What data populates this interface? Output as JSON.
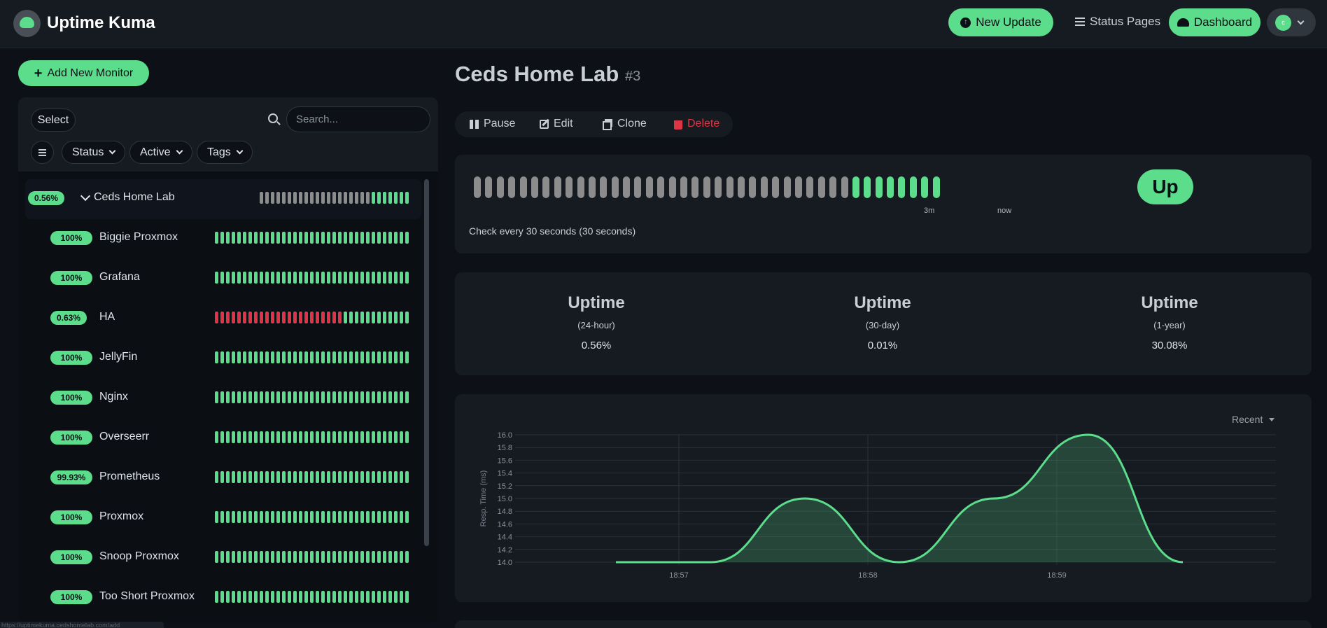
{
  "header": {
    "brand": "Uptime Kuma",
    "new_update_label": "New Update",
    "status_pages_label": "Status Pages",
    "dashboard_label": "Dashboard",
    "avatar_initial": "c"
  },
  "sidebar": {
    "add_monitor_label": "Add New Monitor",
    "select_label": "Select",
    "search_placeholder": "Search...",
    "filters": {
      "status": "Status",
      "active": "Active",
      "tags": "Tags"
    },
    "monitors": [
      {
        "name": "Ceds Home Lab",
        "uptime": "0.56%",
        "group": true,
        "beats": [
          "g",
          "g",
          "g",
          "g",
          "g",
          "g",
          "g",
          "g",
          "g",
          "g",
          "g",
          "g",
          "g",
          "g",
          "g",
          "g",
          "g",
          "g",
          "g",
          "g",
          "u",
          "u",
          "u",
          "u",
          "u",
          "u",
          "u"
        ]
      },
      {
        "name": "Biggie Proxmox",
        "uptime": "100%",
        "beats": [
          "u",
          "u",
          "u",
          "u",
          "u",
          "u",
          "u",
          "u",
          "u",
          "u",
          "u",
          "u",
          "u",
          "u",
          "u",
          "u",
          "u",
          "u",
          "u",
          "u",
          "u",
          "u",
          "u",
          "u",
          "u",
          "u",
          "u",
          "u",
          "u",
          "u",
          "u",
          "u",
          "u",
          "u",
          "u"
        ]
      },
      {
        "name": "Grafana",
        "uptime": "100%",
        "beats": [
          "u",
          "u",
          "u",
          "u",
          "u",
          "u",
          "u",
          "u",
          "u",
          "u",
          "u",
          "u",
          "u",
          "u",
          "u",
          "u",
          "u",
          "u",
          "u",
          "u",
          "u",
          "u",
          "u",
          "u",
          "u",
          "u",
          "u",
          "u",
          "u",
          "u",
          "u",
          "u",
          "u",
          "u",
          "u"
        ]
      },
      {
        "name": "HA",
        "uptime": "0.63%",
        "beats": [
          "d",
          "d",
          "d",
          "d",
          "d",
          "d",
          "d",
          "d",
          "d",
          "d",
          "d",
          "d",
          "d",
          "d",
          "d",
          "d",
          "d",
          "d",
          "d",
          "d",
          "d",
          "d",
          "d",
          "u",
          "u",
          "u",
          "u",
          "u",
          "u",
          "u",
          "u",
          "u",
          "u",
          "u",
          "u"
        ]
      },
      {
        "name": "JellyFin",
        "uptime": "100%",
        "beats": [
          "u",
          "u",
          "u",
          "u",
          "u",
          "u",
          "u",
          "u",
          "u",
          "u",
          "u",
          "u",
          "u",
          "u",
          "u",
          "u",
          "u",
          "u",
          "u",
          "u",
          "u",
          "u",
          "u",
          "u",
          "u",
          "u",
          "u",
          "u",
          "u",
          "u",
          "u",
          "u",
          "u",
          "u",
          "u"
        ]
      },
      {
        "name": "Nginx",
        "uptime": "100%",
        "beats": [
          "u",
          "u",
          "u",
          "u",
          "u",
          "u",
          "u",
          "u",
          "u",
          "u",
          "u",
          "u",
          "u",
          "u",
          "u",
          "u",
          "u",
          "u",
          "u",
          "u",
          "u",
          "u",
          "u",
          "u",
          "u",
          "u",
          "u",
          "u",
          "u",
          "u",
          "u",
          "u",
          "u",
          "u",
          "u"
        ]
      },
      {
        "name": "Overseerr",
        "uptime": "100%",
        "beats": [
          "u",
          "u",
          "u",
          "u",
          "u",
          "u",
          "u",
          "u",
          "u",
          "u",
          "u",
          "u",
          "u",
          "u",
          "u",
          "u",
          "u",
          "u",
          "u",
          "u",
          "u",
          "u",
          "u",
          "u",
          "u",
          "u",
          "u",
          "u",
          "u",
          "u",
          "u",
          "u",
          "u",
          "u",
          "u"
        ]
      },
      {
        "name": "Prometheus",
        "uptime": "99.93%",
        "beats": [
          "u",
          "u",
          "u",
          "u",
          "u",
          "u",
          "u",
          "u",
          "u",
          "u",
          "u",
          "u",
          "u",
          "u",
          "u",
          "u",
          "u",
          "u",
          "u",
          "u",
          "u",
          "u",
          "u",
          "u",
          "u",
          "u",
          "u",
          "u",
          "u",
          "u",
          "u",
          "u",
          "u",
          "u",
          "u"
        ]
      },
      {
        "name": "Proxmox",
        "uptime": "100%",
        "beats": [
          "u",
          "u",
          "u",
          "u",
          "u",
          "u",
          "u",
          "u",
          "u",
          "u",
          "u",
          "u",
          "u",
          "u",
          "u",
          "u",
          "u",
          "u",
          "u",
          "u",
          "u",
          "u",
          "u",
          "u",
          "u",
          "u",
          "u",
          "u",
          "u",
          "u",
          "u",
          "u",
          "u",
          "u",
          "u"
        ]
      },
      {
        "name": "Snoop Proxmox",
        "uptime": "100%",
        "beats": [
          "u",
          "u",
          "u",
          "u",
          "u",
          "u",
          "u",
          "u",
          "u",
          "u",
          "u",
          "u",
          "u",
          "u",
          "u",
          "u",
          "u",
          "u",
          "u",
          "u",
          "u",
          "u",
          "u",
          "u",
          "u",
          "u",
          "u",
          "u",
          "u",
          "u",
          "u",
          "u",
          "u",
          "u",
          "u"
        ]
      },
      {
        "name": "Too Short Proxmox",
        "uptime": "100%",
        "beats": [
          "u",
          "u",
          "u",
          "u",
          "u",
          "u",
          "u",
          "u",
          "u",
          "u",
          "u",
          "u",
          "u",
          "u",
          "u",
          "u",
          "u",
          "u",
          "u",
          "u",
          "u",
          "u",
          "u",
          "u",
          "u",
          "u",
          "u",
          "u",
          "u",
          "u",
          "u",
          "u",
          "u",
          "u",
          "u"
        ]
      }
    ]
  },
  "detail": {
    "title": "Ceds Home Lab",
    "id": "#3",
    "actions": {
      "pause": "Pause",
      "edit": "Edit",
      "clone": "Clone",
      "delete": "Delete"
    },
    "heartbeat": {
      "beats": [
        "g",
        "g",
        "g",
        "g",
        "g",
        "g",
        "g",
        "g",
        "g",
        "g",
        "g",
        "g",
        "g",
        "g",
        "g",
        "g",
        "g",
        "g",
        "g",
        "g",
        "g",
        "g",
        "g",
        "g",
        "g",
        "g",
        "g",
        "g",
        "g",
        "g",
        "g",
        "g",
        "g",
        "u",
        "u",
        "u",
        "u",
        "u",
        "u",
        "u",
        "u"
      ],
      "label_3m": "3m",
      "label_now": "now",
      "check_text": "Check every 30 seconds (30 seconds)",
      "status": "Up"
    },
    "uptime_stats": [
      {
        "heading": "Uptime",
        "period": "(24-hour)",
        "value": "0.56%"
      },
      {
        "heading": "Uptime",
        "period": "(30-day)",
        "value": "0.01%"
      },
      {
        "heading": "Uptime",
        "period": "(1-year)",
        "value": "30.08%"
      }
    ],
    "range_label": "Recent"
  },
  "colors": {
    "accent": "#5cdd8b",
    "down": "#dc3545",
    "pending": "#8c8c8c",
    "background": "#0d1117",
    "card": "#161b22"
  },
  "icons": {
    "new_update": "circle-arrow-up-icon",
    "status_pages": "list-icon",
    "dashboard": "gauge-icon",
    "search": "search-icon",
    "pause": "pause-icon",
    "edit": "edit-icon",
    "clone": "clone-icon",
    "delete": "trash-icon"
  },
  "status_bar_url": "https://uptimekuma.cedshomelab.com/add",
  "chart_data": {
    "type": "area",
    "ylabel": "Resp. Time (ms)",
    "xlabel": "",
    "ylim": [
      14.0,
      16.0
    ],
    "yticks": [
      "14.0",
      "14.2",
      "14.4",
      "14.6",
      "14.8",
      "15.0",
      "15.2",
      "15.4",
      "15.6",
      "15.8",
      "16.0"
    ],
    "xticks": [
      "18:57",
      "18:58",
      "18:59"
    ],
    "grid": true,
    "x": [
      "18:56:40",
      "18:57:10",
      "18:57:40",
      "18:58:10",
      "18:58:40",
      "18:59:10",
      "18:59:40"
    ],
    "series": [
      {
        "values": [
          14.0,
          14.0,
          15.0,
          14.0,
          15.0,
          16.0,
          14.0
        ]
      }
    ]
  }
}
